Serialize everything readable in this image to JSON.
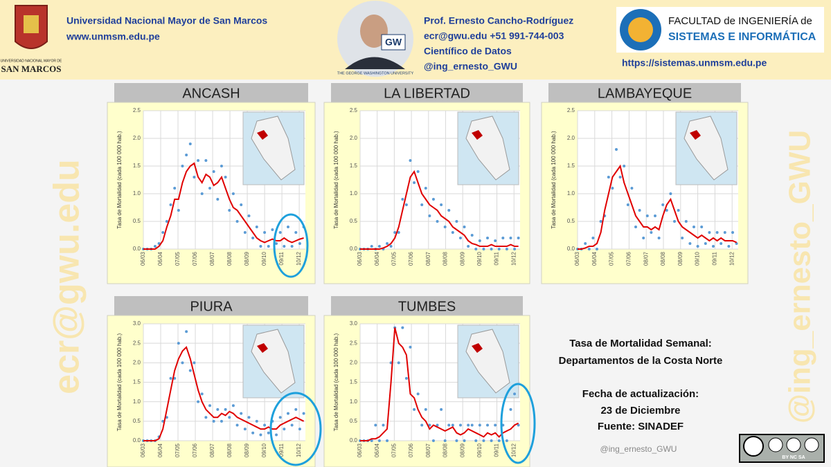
{
  "header": {
    "logo_top": "UNIVERSIDAD NACIONAL MAYOR DE",
    "logo_name": "SAN MARCOS",
    "university": "Universidad Nacional Mayor de San Marcos",
    "website": "www.unmsm.edu.pe",
    "photo_caption": "THE GEORGE WASHINGTON UNIVERSITY",
    "photo_badge": "GW",
    "author": "Prof. Ernesto Cancho-Rodríguez",
    "contact": "ecr@gwu.edu +51 991-744-003",
    "role": "Científico de Datos",
    "handle": "@ing_ernesto_GWU",
    "faculty_line1": "FACULTAD de INGENIERÍA de",
    "faculty_line2": "SISTEMAS E INFORMÁTICA",
    "faculty_url": "https://sistemas.unmsm.edu.pe"
  },
  "watermark": {
    "left": "ecr@gwu.edu",
    "right": "@ing_ernesto_GWU"
  },
  "info": {
    "line1": "Tasa de Mortalidad Semanal:",
    "line2": "Departamentos de la Costa Norte",
    "line3": "Fecha de actualización:",
    "line4": "23 de Diciembre",
    "line5": "Fuente: SINADEF",
    "handle": "@ing_ernesto_GWU",
    "license": "BY NC SA"
  },
  "chart_data": [
    {
      "type": "line",
      "title": "ANCASH",
      "ylabel": "Tasa de Mortalidad (cada 100 000 hab.)",
      "grid": true,
      "x": [
        0,
        7,
        14,
        21,
        28,
        35,
        42,
        49,
        56,
        63,
        70,
        77,
        84,
        91,
        98,
        105,
        112,
        119,
        126,
        133,
        140,
        147,
        154,
        161,
        168,
        175,
        182,
        189,
        196,
        203,
        210,
        217,
        224,
        231,
        238,
        245,
        252,
        259,
        266,
        273,
        280,
        287
      ],
      "xlim": [
        0,
        290
      ],
      "xticks": [
        {
          "value": 0,
          "label": "06/03"
        },
        {
          "value": 31,
          "label": "06/04"
        },
        {
          "value": 62,
          "label": "07/05"
        },
        {
          "value": 93,
          "label": "07/06"
        },
        {
          "value": 124,
          "label": "08/07"
        },
        {
          "value": 155,
          "label": "08/08"
        },
        {
          "value": 186,
          "label": "08/09"
        },
        {
          "value": 217,
          "label": "09/10"
        },
        {
          "value": 248,
          "label": "09/11"
        },
        {
          "value": 279,
          "label": "10/12"
        }
      ],
      "ylim": [
        0,
        2.5
      ],
      "yticks": [
        {
          "value": 0,
          "label": "0.0"
        },
        0.5,
        {
          "value": 1,
          "label": "1.0"
        },
        1.5,
        {
          "value": 2,
          "label": "2.0"
        },
        2.5
      ],
      "series": [
        {
          "type": "scatter",
          "color": "#5b9bd5",
          "values": [
            0,
            0,
            0,
            0.05,
            0.1,
            0.3,
            0.5,
            0.8,
            1.1,
            0.7,
            1.5,
            1.7,
            1.9,
            1.3,
            1.6,
            1.0,
            1.6,
            1.1,
            1.4,
            0.9,
            1.5,
            1.3,
            0.7,
            1.0,
            0.5,
            0.8,
            0.3,
            0.6,
            0.2,
            0.4,
            0.05,
            0.3,
            0.05,
            0.35,
            0.1,
            0.3,
            0.05,
            0.4,
            0.05,
            0.3,
            0.1,
            0.4
          ]
        },
        {
          "type": "line",
          "color": "#e00000",
          "values": [
            0,
            0,
            0,
            0,
            0.05,
            0.15,
            0.4,
            0.6,
            0.9,
            0.9,
            1.2,
            1.4,
            1.5,
            1.55,
            1.3,
            1.2,
            1.35,
            1.3,
            1.15,
            1.2,
            1.3,
            1.1,
            0.9,
            0.75,
            0.7,
            0.6,
            0.5,
            0.4,
            0.3,
            0.2,
            0.15,
            0.12,
            0.15,
            0.18,
            0.15,
            0.15,
            0.2,
            0.15,
            0.12,
            0.15,
            0.18,
            0.2
          ]
        }
      ]
    },
    {
      "type": "line",
      "title": "LA LIBERTAD",
      "ylabel": "Tasa de Mortalidad (cada 100 000 hab.)",
      "grid": true,
      "x": [
        0,
        7,
        14,
        21,
        28,
        35,
        42,
        49,
        56,
        63,
        70,
        77,
        84,
        91,
        98,
        105,
        112,
        119,
        126,
        133,
        140,
        147,
        154,
        161,
        168,
        175,
        182,
        189,
        196,
        203,
        210,
        217,
        224,
        231,
        238,
        245,
        252,
        259,
        266,
        273,
        280,
        287
      ],
      "xlim": [
        0,
        290
      ],
      "xticks": [
        {
          "value": 0,
          "label": "06/03"
        },
        {
          "value": 31,
          "label": "06/04"
        },
        {
          "value": 62,
          "label": "07/05"
        },
        {
          "value": 93,
          "label": "07/06"
        },
        {
          "value": 124,
          "label": "08/07"
        },
        {
          "value": 155,
          "label": "08/08"
        },
        {
          "value": 186,
          "label": "08/09"
        },
        {
          "value": 217,
          "label": "09/10"
        },
        {
          "value": 248,
          "label": "09/11"
        },
        {
          "value": 279,
          "label": "10/12"
        }
      ],
      "ylim": [
        0,
        2.5
      ],
      "yticks": [
        {
          "value": 0,
          "label": "0.0"
        },
        0.5,
        {
          "value": 1,
          "label": "1.0"
        },
        1.5,
        {
          "value": 2,
          "label": "2.0"
        },
        2.5
      ],
      "series": [
        {
          "type": "scatter",
          "color": "#5b9bd5",
          "values": [
            0,
            0,
            0,
            0.05,
            0,
            0.05,
            0,
            0.1,
            0.05,
            0.3,
            0.3,
            0.9,
            0.8,
            1.6,
            1.2,
            1.4,
            0.8,
            1.1,
            0.6,
            0.9,
            0.5,
            0.8,
            0.4,
            0.7,
            0.3,
            0.5,
            0.2,
            0.4,
            0.05,
            0.25,
            0,
            0.15,
            0,
            0.2,
            0,
            0.15,
            0,
            0.2,
            0,
            0.2,
            0,
            0.2
          ]
        },
        {
          "type": "line",
          "color": "#e00000",
          "values": [
            0,
            0,
            0,
            0,
            0,
            0,
            0.02,
            0.05,
            0.1,
            0.2,
            0.4,
            0.7,
            1.0,
            1.3,
            1.4,
            1.2,
            1.0,
            0.9,
            0.8,
            0.75,
            0.7,
            0.6,
            0.55,
            0.5,
            0.4,
            0.35,
            0.3,
            0.25,
            0.15,
            0.1,
            0.08,
            0.05,
            0.05,
            0.05,
            0.08,
            0.05,
            0.05,
            0.05,
            0.05,
            0.08,
            0.05,
            0.05
          ]
        }
      ]
    },
    {
      "type": "line",
      "title": "LAMBAYEQUE",
      "ylabel": "Tasa de Mortalidad (cada 100 000 hab.)",
      "grid": true,
      "x": [
        0,
        7,
        14,
        21,
        28,
        35,
        42,
        49,
        56,
        63,
        70,
        77,
        84,
        91,
        98,
        105,
        112,
        119,
        126,
        133,
        140,
        147,
        154,
        161,
        168,
        175,
        182,
        189,
        196,
        203,
        210,
        217,
        224,
        231,
        238,
        245,
        252,
        259,
        266,
        273,
        280,
        287
      ],
      "xlim": [
        0,
        290
      ],
      "xticks": [
        {
          "value": 0,
          "label": "06/03"
        },
        {
          "value": 31,
          "label": "06/04"
        },
        {
          "value": 62,
          "label": "07/05"
        },
        {
          "value": 93,
          "label": "07/06"
        },
        {
          "value": 124,
          "label": "08/07"
        },
        {
          "value": 155,
          "label": "08/08"
        },
        {
          "value": 186,
          "label": "08/09"
        },
        {
          "value": 217,
          "label": "09/10"
        },
        {
          "value": 248,
          "label": "09/11"
        },
        {
          "value": 279,
          "label": "10/12"
        }
      ],
      "ylim": [
        0,
        2.5
      ],
      "yticks": [
        {
          "value": 0,
          "label": "0.0"
        },
        0.5,
        {
          "value": 1,
          "label": "1.0"
        },
        1.5,
        {
          "value": 2,
          "label": "2.0"
        },
        2.5
      ],
      "series": [
        {
          "type": "scatter",
          "color": "#5b9bd5",
          "values": [
            0,
            0,
            0.1,
            0,
            0.2,
            0,
            0.5,
            0.6,
            1.3,
            1.1,
            1.8,
            1.3,
            1.5,
            0.8,
            1.1,
            0.4,
            0.7,
            0.2,
            0.6,
            0.3,
            0.6,
            0.2,
            0.8,
            0.7,
            1.0,
            0.5,
            0.7,
            0.2,
            0.5,
            0.1,
            0.4,
            0.05,
            0.4,
            0.1,
            0.3,
            0.05,
            0.3,
            0.1,
            0.3,
            0.05,
            0.3,
            0.1
          ]
        },
        {
          "type": "line",
          "color": "#e00000",
          "values": [
            0,
            0,
            0.02,
            0.05,
            0.05,
            0.1,
            0.3,
            0.7,
            1.0,
            1.3,
            1.4,
            1.5,
            1.2,
            1.0,
            0.8,
            0.6,
            0.5,
            0.4,
            0.4,
            0.35,
            0.4,
            0.35,
            0.6,
            0.8,
            0.9,
            0.7,
            0.5,
            0.4,
            0.35,
            0.3,
            0.25,
            0.2,
            0.25,
            0.2,
            0.15,
            0.2,
            0.15,
            0.2,
            0.15,
            0.15,
            0.15,
            0.12
          ]
        }
      ]
    },
    {
      "type": "line",
      "title": "PIURA",
      "ylabel": "Tasa de Mortalidad (cada 100 000 hab.)",
      "grid": true,
      "x": [
        0,
        7,
        14,
        21,
        28,
        35,
        42,
        49,
        56,
        63,
        70,
        77,
        84,
        91,
        98,
        105,
        112,
        119,
        126,
        133,
        140,
        147,
        154,
        161,
        168,
        175,
        182,
        189,
        196,
        203,
        210,
        217,
        224,
        231,
        238,
        245,
        252,
        259,
        266,
        273,
        280,
        287
      ],
      "xlim": [
        0,
        290
      ],
      "xticks": [
        {
          "value": 0,
          "label": "06/03"
        },
        {
          "value": 31,
          "label": "06/04"
        },
        {
          "value": 62,
          "label": "07/05"
        },
        {
          "value": 93,
          "label": "07/06"
        },
        {
          "value": 124,
          "label": "08/07"
        },
        {
          "value": 155,
          "label": "08/08"
        },
        {
          "value": 186,
          "label": "08/09"
        },
        {
          "value": 217,
          "label": "09/10"
        },
        {
          "value": 248,
          "label": "09/11"
        },
        {
          "value": 279,
          "label": "10/12"
        }
      ],
      "ylim": [
        0,
        3
      ],
      "yticks": [
        {
          "value": 0,
          "label": "0.0"
        },
        0.5,
        {
          "value": 1,
          "label": "1.0"
        },
        1.5,
        {
          "value": 2,
          "label": "2.0"
        },
        2.5,
        {
          "value": 3,
          "label": "3.0"
        }
      ],
      "series": [
        {
          "type": "scatter",
          "color": "#5b9bd5",
          "values": [
            0,
            0,
            0,
            0,
            0.1,
            0.5,
            0.6,
            1.6,
            1.6,
            2.5,
            2.0,
            2.8,
            1.8,
            2.0,
            1.0,
            1.2,
            0.6,
            0.9,
            0.5,
            0.8,
            0.5,
            0.8,
            0.6,
            0.9,
            0.4,
            0.7,
            0.3,
            0.6,
            0.2,
            0.5,
            0.15,
            0.4,
            0.2,
            0.5,
            0.15,
            0.6,
            0.3,
            0.7,
            0.4,
            0.8,
            0.3,
            0.7
          ]
        },
        {
          "type": "line",
          "color": "#e00000",
          "values": [
            0,
            0,
            0,
            0,
            0.05,
            0.3,
            0.8,
            1.3,
            1.8,
            2.1,
            2.3,
            2.4,
            2.1,
            1.7,
            1.3,
            1.0,
            0.8,
            0.7,
            0.6,
            0.6,
            0.7,
            0.65,
            0.75,
            0.7,
            0.6,
            0.55,
            0.5,
            0.45,
            0.4,
            0.35,
            0.3,
            0.3,
            0.35,
            0.3,
            0.3,
            0.4,
            0.45,
            0.5,
            0.55,
            0.6,
            0.55,
            0.5
          ]
        }
      ]
    },
    {
      "type": "line",
      "title": "TUMBES",
      "ylabel": "Tasa de Mortalidad (cada 100 000 hab.)",
      "grid": true,
      "x": [
        0,
        7,
        14,
        21,
        28,
        35,
        42,
        49,
        56,
        63,
        70,
        77,
        84,
        91,
        98,
        105,
        112,
        119,
        126,
        133,
        140,
        147,
        154,
        161,
        168,
        175,
        182,
        189,
        196,
        203,
        210,
        217,
        224,
        231,
        238,
        245,
        252,
        259,
        266,
        273,
        280,
        287
      ],
      "xlim": [
        0,
        290
      ],
      "xticks": [
        {
          "value": 0,
          "label": "06/03"
        },
        {
          "value": 31,
          "label": "06/04"
        },
        {
          "value": 62,
          "label": "07/05"
        },
        {
          "value": 93,
          "label": "07/06"
        },
        {
          "value": 124,
          "label": "08/07"
        },
        {
          "value": 155,
          "label": "08/08"
        },
        {
          "value": 186,
          "label": "08/09"
        },
        {
          "value": 217,
          "label": "09/10"
        },
        {
          "value": 248,
          "label": "09/11"
        },
        {
          "value": 279,
          "label": "10/12"
        }
      ],
      "ylim": [
        0,
        3
      ],
      "yticks": [
        {
          "value": 0,
          "label": "0.0"
        },
        0.5,
        {
          "value": 1,
          "label": "1.0"
        },
        1.5,
        {
          "value": 2,
          "label": "2.0"
        },
        2.5,
        {
          "value": 3,
          "label": "3.0"
        }
      ],
      "series": [
        {
          "type": "scatter",
          "color": "#5b9bd5",
          "values": [
            0,
            0,
            0,
            0,
            0.4,
            0,
            0.4,
            0,
            2.0,
            2.9,
            2.0,
            2.9,
            1.6,
            2.4,
            0.8,
            1.2,
            0.4,
            0.8,
            0.4,
            0,
            0.4,
            0.8,
            0,
            0.4,
            0.4,
            0,
            0.4,
            0,
            0.4,
            0.4,
            0,
            0.4,
            0,
            0.4,
            0,
            0.4,
            0,
            0.4,
            0,
            0.8,
            1.2,
            0.4
          ]
        },
        {
          "type": "line",
          "color": "#e00000",
          "values": [
            0,
            0,
            0,
            0.05,
            0.05,
            0.1,
            0.2,
            0.3,
            1.5,
            2.9,
            2.5,
            2.4,
            2.2,
            1.2,
            1.1,
            0.8,
            0.6,
            0.5,
            0.3,
            0.4,
            0.35,
            0.3,
            0.25,
            0.3,
            0.35,
            0.2,
            0.15,
            0.2,
            0.3,
            0.25,
            0.2,
            0.15,
            0.1,
            0.2,
            0.15,
            0.2,
            0.1,
            0.2,
            0.25,
            0.3,
            0.4,
            0.45
          ]
        }
      ]
    }
  ]
}
